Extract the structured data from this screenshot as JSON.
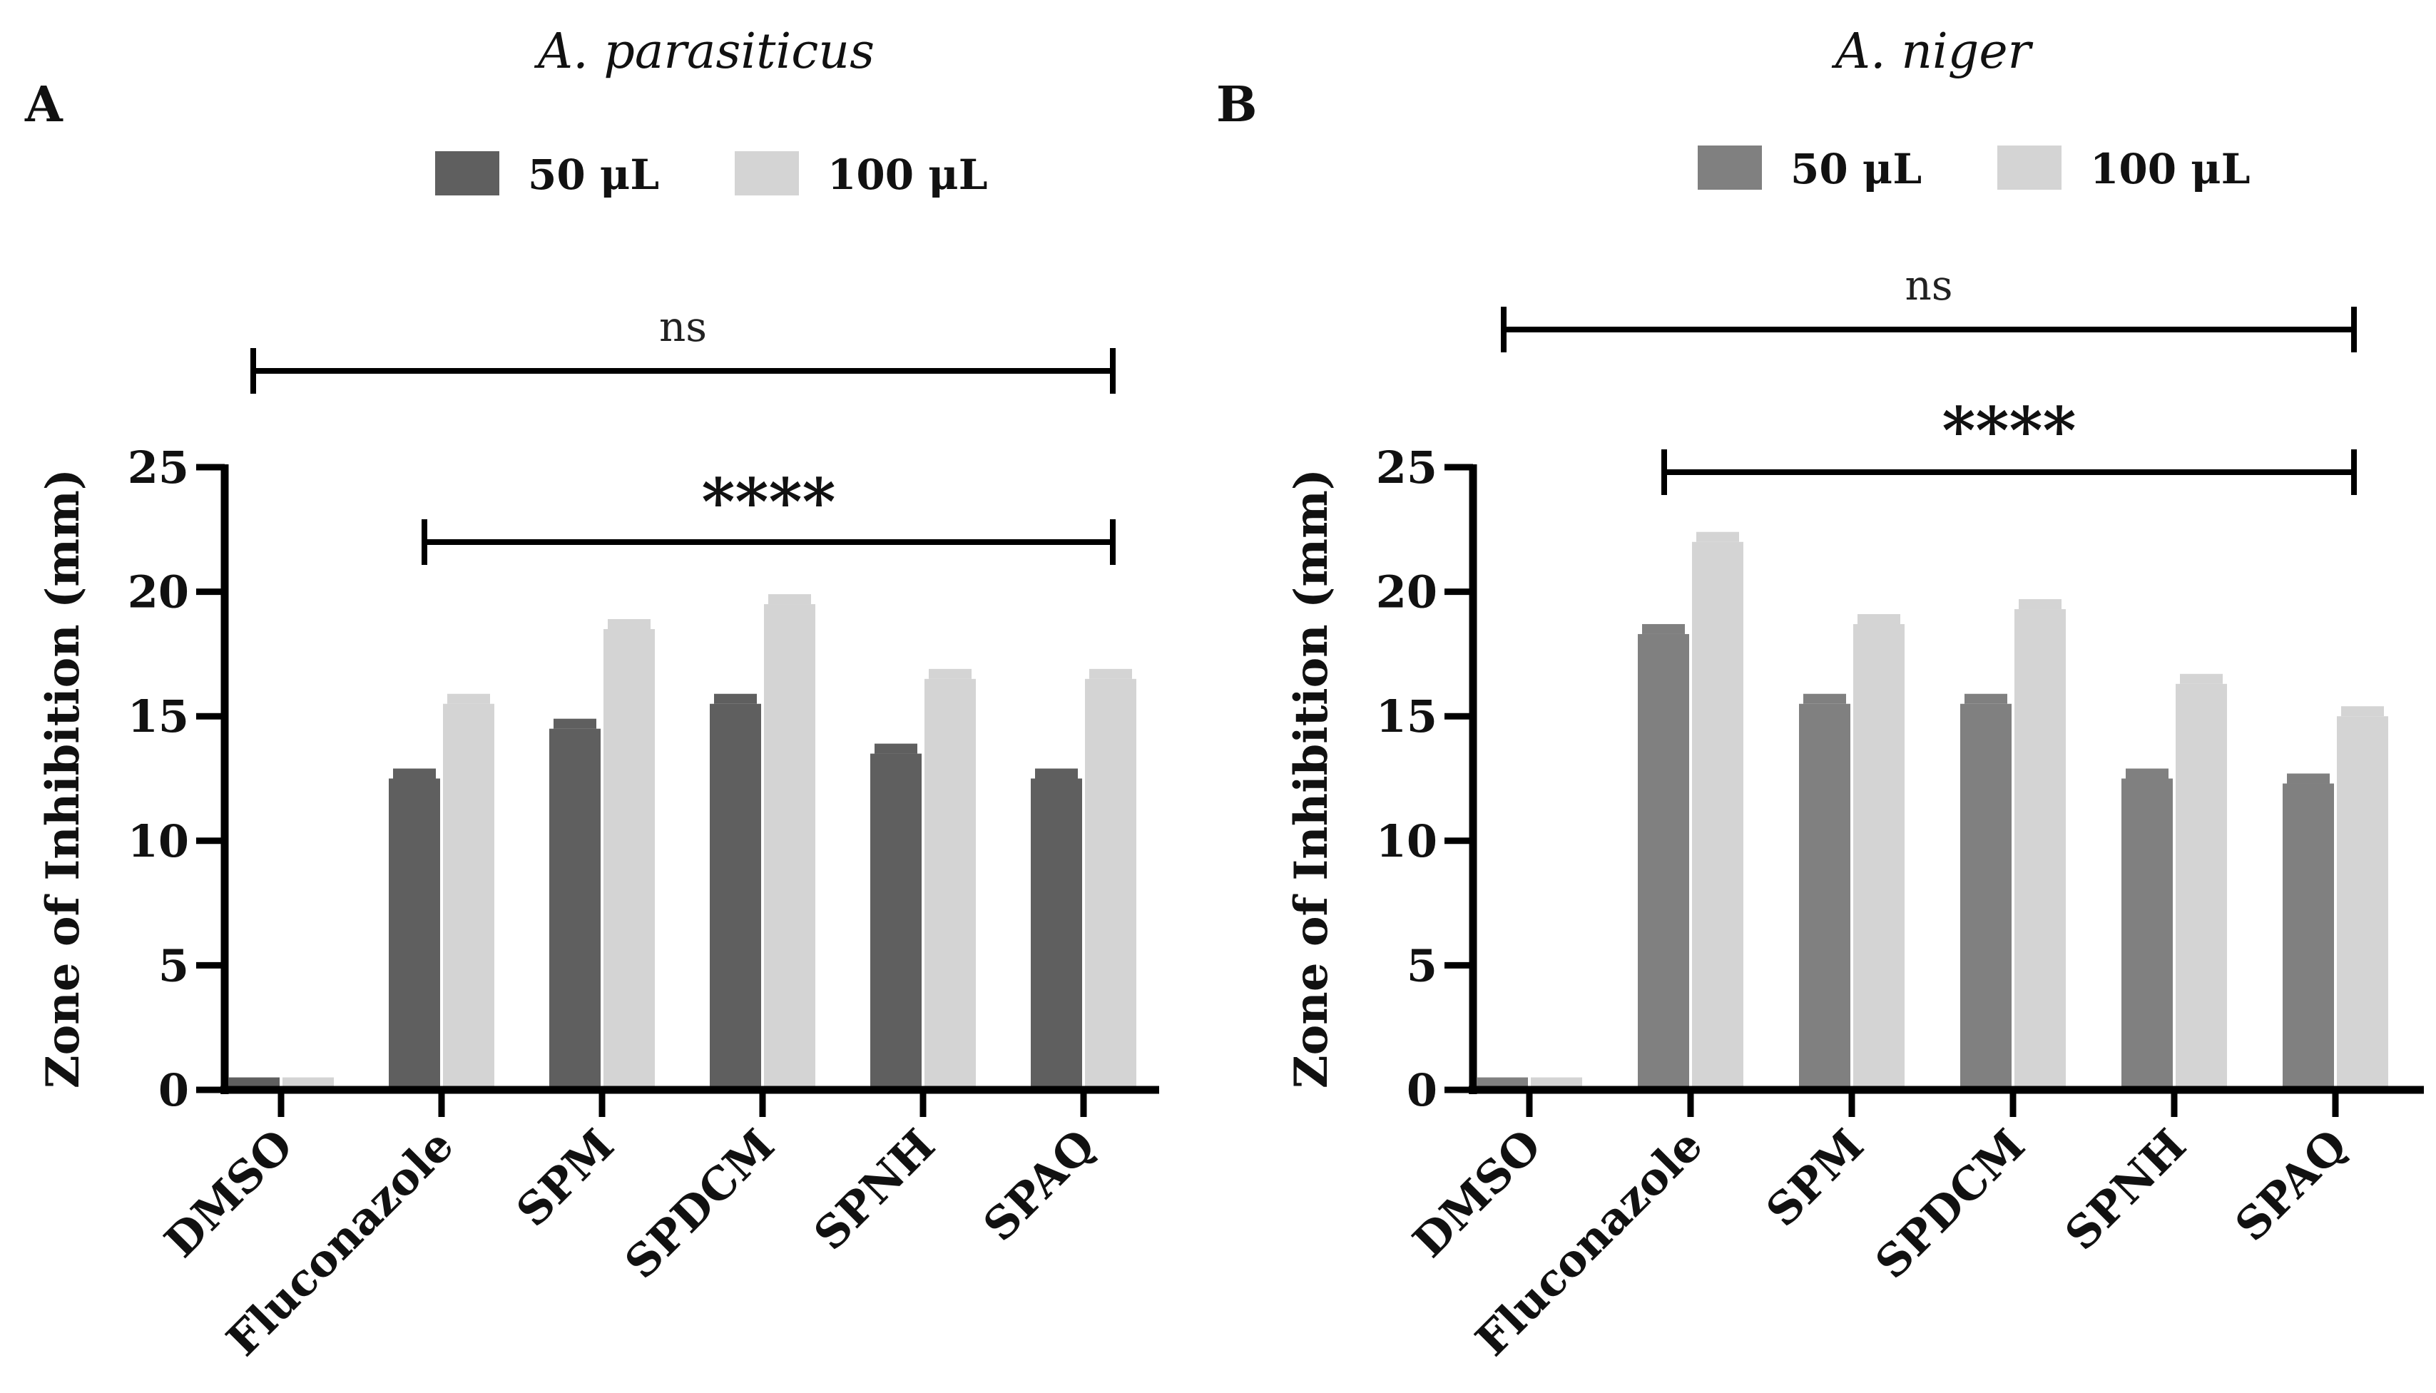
{
  "chart_data": [
    {
      "type": "bar",
      "panel": "A",
      "title": "A. parasiticus",
      "ylabel": "Zone of Inhibition (mm)",
      "xlabel": "",
      "ylim": [
        0,
        25
      ],
      "yticks": [
        0,
        5,
        10,
        15,
        20,
        25
      ],
      "categories": [
        "DMSO",
        "Fluconazole",
        "SPM",
        "SPDCM",
        "SPNH",
        "SPAQ"
      ],
      "series": [
        {
          "name": "50 μL",
          "color": "#5f5f5f",
          "values": [
            0.5,
            12.5,
            14.5,
            15.5,
            13.5,
            12.5
          ]
        },
        {
          "name": "100 μL",
          "color": "#d4d4d4",
          "values": [
            0.5,
            15.5,
            18.5,
            19.5,
            16.5,
            16.5
          ]
        }
      ],
      "annotations": [
        {
          "text": "ns",
          "from": "DMSO",
          "to": "SPAQ"
        },
        {
          "text": "****",
          "from": "Fluconazole",
          "to": "SPAQ"
        }
      ],
      "legend": "top"
    },
    {
      "type": "bar",
      "panel": "B",
      "title": "A. niger",
      "ylabel": "Zone of Inhibition (mm)",
      "xlabel": "",
      "ylim": [
        0,
        25
      ],
      "yticks": [
        0,
        5,
        10,
        15,
        20,
        25
      ],
      "categories": [
        "DMSO",
        "Fluconazole",
        "SPM",
        "SPDCM",
        "SPNH",
        "SPAQ"
      ],
      "series": [
        {
          "name": "50 μL",
          "color": "#808080",
          "values": [
            0.5,
            18.3,
            15.5,
            15.5,
            12.5,
            12.3
          ]
        },
        {
          "name": "100 μL",
          "color": "#d4d4d4",
          "values": [
            0.5,
            22.0,
            18.7,
            19.3,
            16.3,
            15.0
          ]
        }
      ],
      "annotations": [
        {
          "text": "ns",
          "from": "DMSO",
          "to": "SPAQ"
        },
        {
          "text": "****",
          "from": "Fluconazole",
          "to": "SPAQ"
        }
      ],
      "legend": "top"
    }
  ]
}
